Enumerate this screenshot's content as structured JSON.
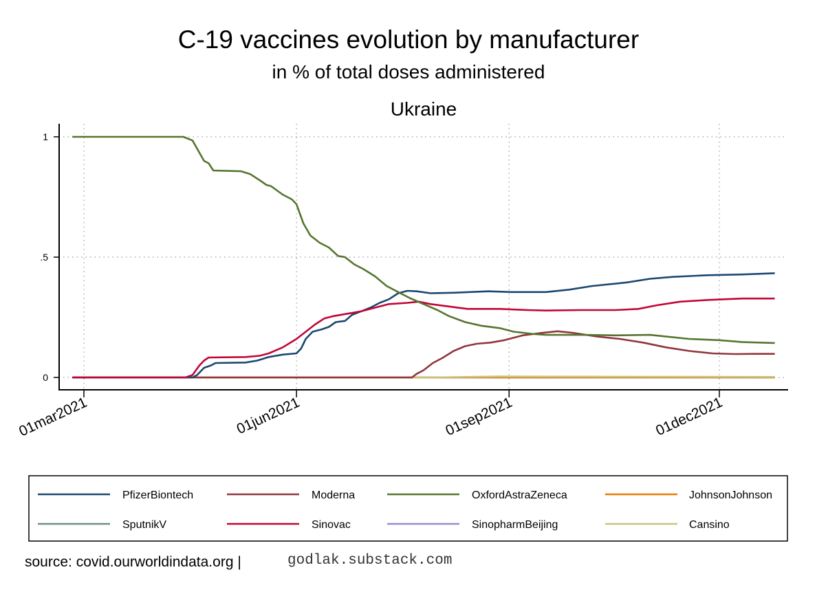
{
  "chart_data": {
    "type": "line",
    "title": "C-19 vaccines evolution by manufacturer",
    "subtitle": "in % of total doses administered",
    "panel_title": "Ukraine",
    "x_unit": "days since 01mar2021",
    "xlim": [
      -5,
      299
    ],
    "ylim": [
      0,
      1
    ],
    "yticks": [
      {
        "value": 0,
        "label": "0"
      },
      {
        "value": 0.5,
        "label": ".5"
      },
      {
        "value": 1,
        "label": "1"
      }
    ],
    "xticks": [
      {
        "value": 0,
        "label": "01mar2021"
      },
      {
        "value": 92,
        "label": "01jun2021"
      },
      {
        "value": 184,
        "label": "01sep2021"
      },
      {
        "value": 275,
        "label": "01dec2021"
      }
    ],
    "grid": true,
    "legend_position": "bottom",
    "series": [
      {
        "name": "PfizerBiontech",
        "color": "#1a476f",
        "points": [
          [
            -5,
            0
          ],
          [
            47,
            0
          ],
          [
            49,
            0.01
          ],
          [
            52,
            0.04
          ],
          [
            55,
            0.05
          ],
          [
            57,
            0.06
          ],
          [
            70,
            0.062
          ],
          [
            75,
            0.07
          ],
          [
            80,
            0.085
          ],
          [
            86,
            0.095
          ],
          [
            92,
            0.1
          ],
          [
            94,
            0.12
          ],
          [
            96,
            0.16
          ],
          [
            99,
            0.19
          ],
          [
            103,
            0.2
          ],
          [
            106,
            0.21
          ],
          [
            109,
            0.23
          ],
          [
            113,
            0.235
          ],
          [
            116,
            0.26
          ],
          [
            120,
            0.275
          ],
          [
            124,
            0.29
          ],
          [
            128,
            0.31
          ],
          [
            132,
            0.325
          ],
          [
            136,
            0.35
          ],
          [
            140,
            0.36
          ],
          [
            144,
            0.358
          ],
          [
            150,
            0.35
          ],
          [
            160,
            0.352
          ],
          [
            175,
            0.358
          ],
          [
            185,
            0.355
          ],
          [
            200,
            0.355
          ],
          [
            210,
            0.365
          ],
          [
            220,
            0.38
          ],
          [
            235,
            0.395
          ],
          [
            245,
            0.41
          ],
          [
            255,
            0.418
          ],
          [
            270,
            0.425
          ],
          [
            285,
            0.428
          ],
          [
            299,
            0.433
          ]
        ]
      },
      {
        "name": "Moderna",
        "color": "#90353b",
        "points": [
          [
            -5,
            0
          ],
          [
            142,
            0
          ],
          [
            144,
            0.015
          ],
          [
            147,
            0.03
          ],
          [
            151,
            0.06
          ],
          [
            155,
            0.08
          ],
          [
            160,
            0.11
          ],
          [
            165,
            0.13
          ],
          [
            170,
            0.14
          ],
          [
            176,
            0.145
          ],
          [
            182,
            0.155
          ],
          [
            190,
            0.175
          ],
          [
            198,
            0.185
          ],
          [
            205,
            0.192
          ],
          [
            212,
            0.185
          ],
          [
            222,
            0.17
          ],
          [
            232,
            0.16
          ],
          [
            242,
            0.145
          ],
          [
            252,
            0.125
          ],
          [
            262,
            0.11
          ],
          [
            272,
            0.1
          ],
          [
            282,
            0.097
          ],
          [
            290,
            0.098
          ],
          [
            299,
            0.098
          ]
        ]
      },
      {
        "name": "OxfordAstraZeneca",
        "color": "#55752f",
        "points": [
          [
            -5,
            1
          ],
          [
            43,
            1
          ],
          [
            47,
            0.985
          ],
          [
            52,
            0.9
          ],
          [
            54,
            0.89
          ],
          [
            56,
            0.86
          ],
          [
            68,
            0.857
          ],
          [
            72,
            0.845
          ],
          [
            76,
            0.82
          ],
          [
            79,
            0.8
          ],
          [
            81,
            0.795
          ],
          [
            86,
            0.76
          ],
          [
            90,
            0.74
          ],
          [
            92,
            0.72
          ],
          [
            95,
            0.64
          ],
          [
            98,
            0.59
          ],
          [
            102,
            0.56
          ],
          [
            106,
            0.54
          ],
          [
            110,
            0.505
          ],
          [
            113,
            0.5
          ],
          [
            117,
            0.47
          ],
          [
            121,
            0.45
          ],
          [
            126,
            0.42
          ],
          [
            131,
            0.38
          ],
          [
            136,
            0.355
          ],
          [
            141,
            0.33
          ],
          [
            147,
            0.305
          ],
          [
            153,
            0.28
          ],
          [
            158,
            0.255
          ],
          [
            165,
            0.23
          ],
          [
            172,
            0.215
          ],
          [
            180,
            0.205
          ],
          [
            186,
            0.19
          ],
          [
            195,
            0.18
          ],
          [
            200,
            0.177
          ],
          [
            215,
            0.177
          ],
          [
            230,
            0.175
          ],
          [
            245,
            0.177
          ],
          [
            250,
            0.172
          ],
          [
            262,
            0.16
          ],
          [
            275,
            0.155
          ],
          [
            285,
            0.147
          ],
          [
            299,
            0.143
          ]
        ]
      },
      {
        "name": "JohnsonJohnson",
        "color": "#e37e00",
        "points": [
          [
            -5,
            0
          ],
          [
            299,
            0
          ]
        ]
      },
      {
        "name": "SputnikV",
        "color": "#6e8e84",
        "points": [
          [
            -5,
            0
          ],
          [
            299,
            0
          ]
        ]
      },
      {
        "name": "Sinovac",
        "color": "#c10534",
        "points": [
          [
            -5,
            0
          ],
          [
            44,
            0
          ],
          [
            47,
            0.01
          ],
          [
            50,
            0.05
          ],
          [
            52,
            0.07
          ],
          [
            54,
            0.083
          ],
          [
            70,
            0.085
          ],
          [
            76,
            0.09
          ],
          [
            80,
            0.1
          ],
          [
            86,
            0.125
          ],
          [
            92,
            0.16
          ],
          [
            96,
            0.19
          ],
          [
            100,
            0.22
          ],
          [
            104,
            0.245
          ],
          [
            108,
            0.255
          ],
          [
            114,
            0.265
          ],
          [
            120,
            0.275
          ],
          [
            126,
            0.29
          ],
          [
            132,
            0.305
          ],
          [
            140,
            0.31
          ],
          [
            145,
            0.315
          ],
          [
            150,
            0.305
          ],
          [
            158,
            0.295
          ],
          [
            166,
            0.285
          ],
          [
            172,
            0.285
          ],
          [
            180,
            0.285
          ],
          [
            192,
            0.28
          ],
          [
            200,
            0.278
          ],
          [
            215,
            0.28
          ],
          [
            230,
            0.28
          ],
          [
            240,
            0.285
          ],
          [
            248,
            0.3
          ],
          [
            258,
            0.315
          ],
          [
            270,
            0.322
          ],
          [
            285,
            0.328
          ],
          [
            299,
            0.328
          ]
        ]
      },
      {
        "name": "SinopharmBeijing",
        "color": "#938dd2",
        "points": [
          [
            -5,
            0
          ],
          [
            299,
            0
          ]
        ]
      },
      {
        "name": "Cansino",
        "color": "#cac27e",
        "points": [
          [
            -5,
            0
          ],
          [
            150,
            0
          ],
          [
            180,
            0.004
          ],
          [
            250,
            0.003
          ],
          [
            299,
            0.002
          ]
        ]
      }
    ]
  },
  "footer": {
    "source": "source: covid.ourworldindata.org |",
    "site": "godlak.substack.com"
  }
}
